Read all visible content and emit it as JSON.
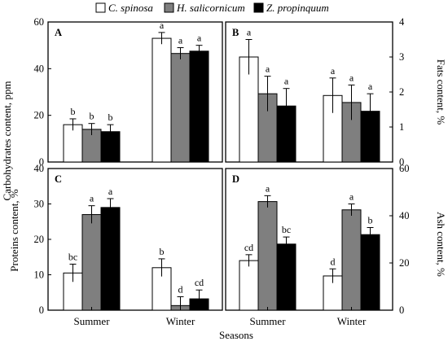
{
  "legend": [
    {
      "name": "C. spinosa",
      "color": "#ffffff"
    },
    {
      "name": "H. salicornicum",
      "color": "#7f7f7f"
    },
    {
      "name": "Z. propinquum",
      "color": "#000000"
    }
  ],
  "x_axis_title": "Seasons",
  "chart_data": [
    {
      "panel": "A",
      "type": "bar",
      "categories": [
        "Summer",
        "Winter"
      ],
      "ylabel": "Carbohydrates content, ppm",
      "ylim": [
        0,
        60
      ],
      "yticks": [
        0,
        20,
        40,
        60
      ],
      "axis_side": "left",
      "series": [
        {
          "name": "C. spinosa",
          "values": [
            16,
            53
          ],
          "errors": [
            2.5,
            2.5
          ],
          "letters": [
            "b",
            "a"
          ]
        },
        {
          "name": "H. salicornicum",
          "values": [
            14,
            46.5
          ],
          "errors": [
            2.5,
            2.5
          ],
          "letters": [
            "b",
            "a"
          ]
        },
        {
          "name": "Z. propinquum",
          "values": [
            13,
            47.5
          ],
          "errors": [
            3,
            2.5
          ],
          "letters": [
            "b",
            "a"
          ]
        }
      ]
    },
    {
      "panel": "B",
      "type": "bar",
      "categories": [
        "Summer",
        "Winter"
      ],
      "ylabel": "Fats content, %",
      "ylim": [
        0,
        4
      ],
      "yticks": [
        0,
        1,
        2,
        3,
        4
      ],
      "axis_side": "right",
      "series": [
        {
          "name": "C. spinosa",
          "values": [
            3.0,
            1.9
          ],
          "errors": [
            0.5,
            0.5
          ],
          "letters": [
            "a",
            "a"
          ]
        },
        {
          "name": "H. salicornicum",
          "values": [
            1.95,
            1.7
          ],
          "errors": [
            0.5,
            0.5
          ],
          "letters": [
            "a",
            "a"
          ]
        },
        {
          "name": "Z. propinquum",
          "values": [
            1.6,
            1.45
          ],
          "errors": [
            0.5,
            0.5
          ],
          "letters": [
            "a",
            "a"
          ]
        }
      ]
    },
    {
      "panel": "C",
      "type": "bar",
      "categories": [
        "Summer",
        "Winter"
      ],
      "ylabel": "Proteins content, %",
      "ylim": [
        0,
        40
      ],
      "yticks": [
        0,
        10,
        20,
        30,
        40
      ],
      "axis_side": "left",
      "series": [
        {
          "name": "C. spinosa",
          "values": [
            10.5,
            12
          ],
          "errors": [
            2.5,
            2.5
          ],
          "letters": [
            "bc",
            "b"
          ]
        },
        {
          "name": "H. salicornicum",
          "values": [
            27,
            1.3
          ],
          "errors": [
            2.5,
            2.5
          ],
          "letters": [
            "a",
            "d"
          ]
        },
        {
          "name": "Z. propinquum",
          "values": [
            29,
            3.2
          ],
          "errors": [
            2.5,
            2.5
          ],
          "letters": [
            "a",
            "cd"
          ]
        }
      ]
    },
    {
      "panel": "D",
      "type": "bar",
      "categories": [
        "Summer",
        "Winter"
      ],
      "ylabel": "Ash content, %",
      "ylim": [
        0,
        60
      ],
      "yticks": [
        0,
        20,
        40,
        60
      ],
      "axis_side": "right",
      "series": [
        {
          "name": "C. spinosa",
          "values": [
            21,
            14.5
          ],
          "errors": [
            2.5,
            3
          ],
          "letters": [
            "cd",
            "d"
          ]
        },
        {
          "name": "H. salicornicum",
          "values": [
            46,
            42.5
          ],
          "errors": [
            2.5,
            2.5
          ],
          "letters": [
            "a",
            "a"
          ]
        },
        {
          "name": "Z. propinquum",
          "values": [
            28,
            32
          ],
          "errors": [
            3,
            3
          ],
          "letters": [
            "bc",
            "b"
          ]
        }
      ]
    }
  ]
}
